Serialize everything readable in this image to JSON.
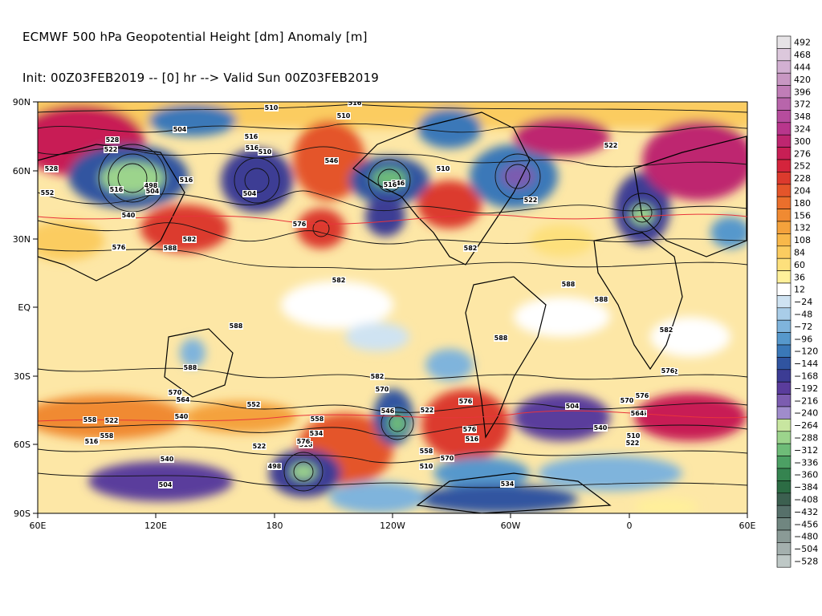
{
  "header": {
    "line1": "ECMWF 500 hPa Geopotential Height [dm] Anomaly [m]",
    "line2": "Init: 00Z03FEB2019 -- [0] hr --> Valid Sun 00Z03FEB2019"
  },
  "axes": {
    "lat_ticks": [
      "90N",
      "60N",
      "30N",
      "EQ",
      "30S",
      "60S",
      "90S"
    ],
    "lon_ticks": [
      "60E",
      "120E",
      "180",
      "120W",
      "60W",
      "0",
      "60E"
    ]
  },
  "colorbar": {
    "levels": [
      "492",
      "468",
      "444",
      "420",
      "396",
      "372",
      "348",
      "324",
      "300",
      "276",
      "252",
      "228",
      "204",
      "180",
      "156",
      "132",
      "108",
      "84",
      "60",
      "36",
      "12",
      "−24",
      "−48",
      "−72",
      "−96",
      "−120",
      "−144",
      "−168",
      "−192",
      "−216",
      "−240",
      "−264",
      "−288",
      "−312",
      "−336",
      "−360",
      "−384",
      "−408",
      "−432",
      "−456",
      "−480",
      "−504",
      "−528"
    ],
    "colors": [
      "#e6e3e6",
      "#dcc8dc",
      "#d2b0d2",
      "#c897c3",
      "#c07db7",
      "#b865ab",
      "#b64c9d",
      "#b8368c",
      "#be2670",
      "#c81f55",
      "#d4243c",
      "#dc3a2d",
      "#e4552a",
      "#ea6f2c",
      "#f08a32",
      "#f4a23c",
      "#f8b84a",
      "#fbcc60",
      "#fde07c",
      "#fff09a",
      "#ffffff",
      "#cfe3f2",
      "#a9cde8",
      "#7fb4dc",
      "#5698cc",
      "#3a78b8",
      "#3054a0",
      "#3c3c94",
      "#5a3c9c",
      "#7c5cb0",
      "#a08ccc",
      "#c8e6a0",
      "#9cd48c",
      "#6ebc78",
      "#4ca064",
      "#358450",
      "#2c6c44",
      "#3c6050",
      "#56706a",
      "#708680",
      "#8a9a96",
      "#a4b0ae",
      "#bec8c6"
    ]
  },
  "map": {
    "height_labels": [
      "510",
      "516",
      "510",
      "504",
      "516",
      "516",
      "522",
      "528",
      "510",
      "528",
      "516",
      "498",
      "504",
      "516",
      "552",
      "546",
      "504",
      "510",
      "546",
      "516",
      "522",
      "522",
      "558",
      "576",
      "540",
      "582",
      "576",
      "588",
      "582",
      "588",
      "582",
      "588",
      "588",
      "588",
      "582",
      "582",
      "588",
      "576",
      "570",
      "564",
      "540",
      "522",
      "558",
      "534",
      "516",
      "570",
      "546",
      "552",
      "558",
      "534",
      "516",
      "576",
      "522",
      "498",
      "504",
      "540",
      "522",
      "510",
      "516",
      "576",
      "570",
      "558",
      "534",
      "504",
      "540",
      "522",
      "510",
      "516",
      "570",
      "576",
      "582",
      "576",
      "564"
    ]
  }
}
